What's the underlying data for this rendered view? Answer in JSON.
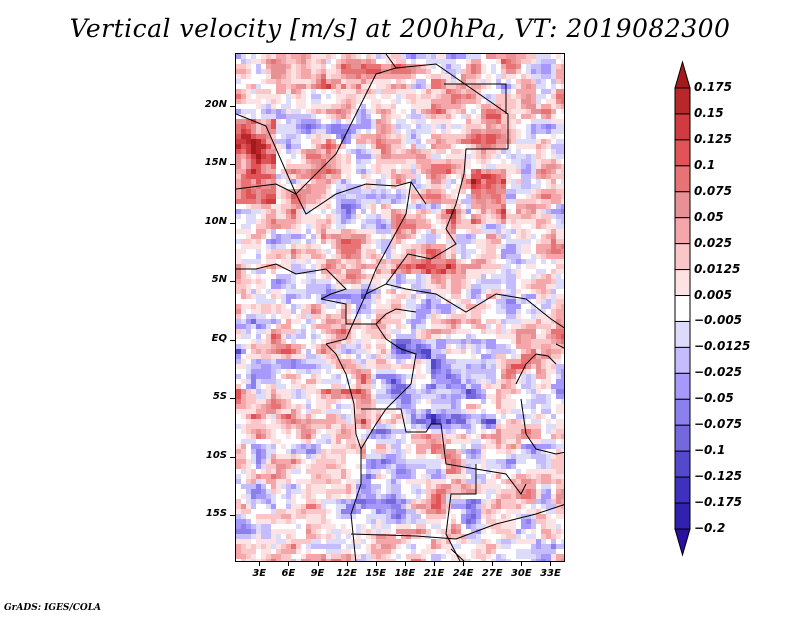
{
  "title": "Vertical velocity [m/s] at 200hPa, VT: 2019082300",
  "credit": "GrADS: IGES/COLA",
  "map": {
    "variable": "Vertical velocity",
    "units": "m/s",
    "level": "200hPa",
    "valid_time": "2019082300",
    "lat_labels": [
      {
        "label": "20N",
        "lat": 20
      },
      {
        "label": "15N",
        "lat": 15
      },
      {
        "label": "10N",
        "lat": 10
      },
      {
        "label": "5N",
        "lat": 5
      },
      {
        "label": "EQ",
        "lat": 0
      },
      {
        "label": "5S",
        "lat": -5
      },
      {
        "label": "10S",
        "lat": -10
      },
      {
        "label": "15S",
        "lat": -15
      }
    ],
    "lon_labels": [
      {
        "label": "3E",
        "lon": 3
      },
      {
        "label": "6E",
        "lon": 6
      },
      {
        "label": "9E",
        "lon": 9
      },
      {
        "label": "12E",
        "lon": 12
      },
      {
        "label": "15E",
        "lon": 15
      },
      {
        "label": "18E",
        "lon": 18
      },
      {
        "label": "21E",
        "lon": 21
      },
      {
        "label": "24E",
        "lon": 24
      },
      {
        "label": "27E",
        "lon": 27
      },
      {
        "label": "30E",
        "lon": 30
      },
      {
        "label": "33E",
        "lon": 33
      }
    ],
    "extent": {
      "lon_min": 0.5,
      "lon_max": 34.5,
      "lat_min": -19,
      "lat_max": 24.5
    }
  },
  "colorbar": {
    "labels": [
      "0.175",
      "0.15",
      "0.125",
      "0.1",
      "0.075",
      "0.05",
      "0.025",
      "0.0125",
      "0.005",
      "-0.005",
      "-0.0125",
      "-0.025",
      "-0.05",
      "-0.075",
      "-0.1",
      "-0.125",
      "-0.175",
      "-0.2"
    ],
    "colors": [
      "#a31a1c",
      "#b8282b",
      "#cf3b3e",
      "#e05457",
      "#e87375",
      "#e89194",
      "#f5a6a8",
      "#fbc6c7",
      "#fde2e3",
      "#ffffff",
      "#dcdcfa",
      "#c4bcfb",
      "#a699fb",
      "#8c80ee",
      "#7468dc",
      "#5448cc",
      "#4030be",
      "#3220ae",
      "#2a10a0"
    ]
  }
}
